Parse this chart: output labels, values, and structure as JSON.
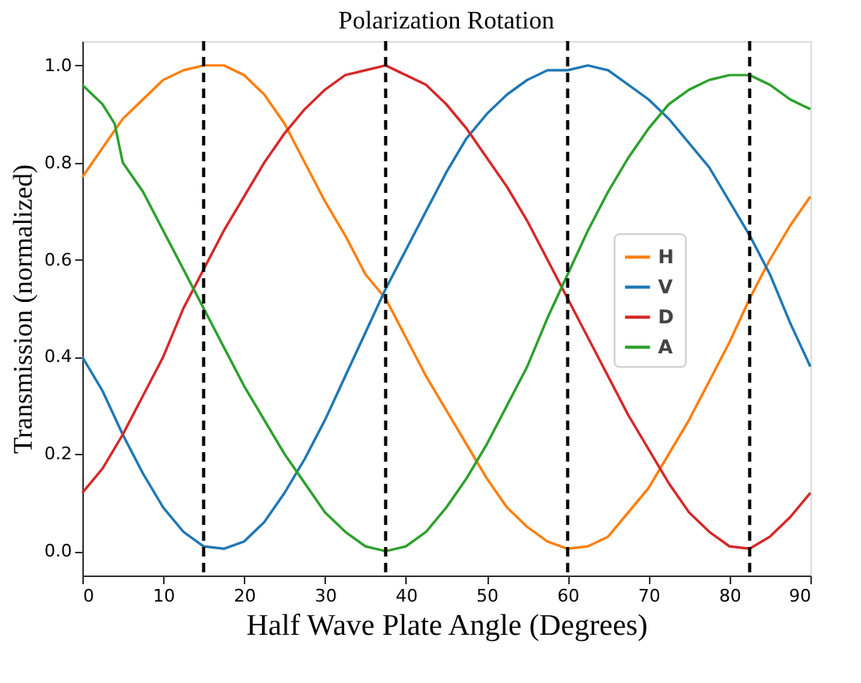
{
  "chart_data": {
    "type": "line",
    "title": "Polarization Rotation",
    "xlabel": "Half Wave Plate Angle (Degrees)",
    "ylabel": "Transmission (normalized)",
    "x": [
      0,
      2.5,
      5,
      7.5,
      10,
      12.5,
      15,
      17.5,
      20,
      22.5,
      25,
      27.5,
      30,
      32.5,
      35,
      37.5,
      40,
      42.5,
      45,
      47.5,
      50,
      52.5,
      55,
      57.5,
      60,
      62.5,
      65,
      67.5,
      70,
      72.5,
      75,
      77.5,
      80,
      82.5,
      85,
      87.5,
      90
    ],
    "series": [
      {
        "name": "H",
        "color": "#ff7f0e",
        "values": [
          0.77,
          0.83,
          0.89,
          0.93,
          0.97,
          0.99,
          1.0,
          1.0,
          0.98,
          0.94,
          0.88,
          0.8,
          0.72,
          0.65,
          0.57,
          0.52,
          0.44,
          0.36,
          0.29,
          0.22,
          0.15,
          0.09,
          0.05,
          0.02,
          0.005,
          0.01,
          0.03,
          0.08,
          0.13,
          0.2,
          0.27,
          0.35,
          0.43,
          0.52,
          0.6,
          0.67,
          0.73
        ]
      },
      {
        "name": "V",
        "color": "#1f77b4",
        "values": [
          0.4,
          0.33,
          0.24,
          0.16,
          0.09,
          0.04,
          0.01,
          0.005,
          0.02,
          0.06,
          0.12,
          0.19,
          0.27,
          0.36,
          0.45,
          0.54,
          0.62,
          0.7,
          0.78,
          0.85,
          0.9,
          0.94,
          0.97,
          0.99,
          0.99,
          1.0,
          0.99,
          0.96,
          0.93,
          0.89,
          0.84,
          0.79,
          0.72,
          0.65,
          0.57,
          0.47,
          0.38
        ]
      },
      {
        "name": "D",
        "color": "#d62728",
        "values": [
          0.12,
          0.17,
          0.24,
          0.32,
          0.4,
          0.5,
          0.58,
          0.66,
          0.73,
          0.8,
          0.86,
          0.91,
          0.95,
          0.98,
          0.99,
          1.0,
          0.98,
          0.96,
          0.92,
          0.87,
          0.81,
          0.75,
          0.68,
          0.6,
          0.52,
          0.44,
          0.36,
          0.28,
          0.21,
          0.14,
          0.08,
          0.04,
          0.01,
          0.005,
          0.03,
          0.07,
          0.12
        ]
      },
      {
        "name": "A",
        "color": "#2ca02c",
        "x": [
          0,
          2.5,
          4,
          5,
          7.5,
          10,
          12.5,
          15,
          17.5,
          20,
          22.5,
          25,
          27.5,
          30,
          32.5,
          35,
          37.5,
          40,
          42.5,
          45,
          47.5,
          50,
          52.5,
          55,
          57.5,
          60,
          62.5,
          65,
          67.5,
          70,
          72.5,
          75,
          77.5,
          80,
          82.5,
          85,
          87.5,
          90
        ],
        "values": [
          0.96,
          0.92,
          0.88,
          0.8,
          0.74,
          0.66,
          0.58,
          0.5,
          0.42,
          0.34,
          0.27,
          0.2,
          0.14,
          0.08,
          0.04,
          0.01,
          0.0,
          0.01,
          0.04,
          0.09,
          0.15,
          0.22,
          0.3,
          0.38,
          0.48,
          0.57,
          0.66,
          0.74,
          0.81,
          0.87,
          0.92,
          0.95,
          0.97,
          0.98,
          0.98,
          0.96,
          0.93,
          0.91
        ]
      }
    ],
    "xlim": [
      0,
      90
    ],
    "xticks": [
      0,
      10,
      20,
      30,
      40,
      50,
      60,
      70,
      80,
      90
    ],
    "ylim": [
      -0.05,
      1.05
    ],
    "yticks": [
      {
        "value": 0,
        "label": "0.0"
      },
      {
        "value": 0.2,
        "label": "0.2"
      },
      {
        "value": 0.4,
        "label": "0.4"
      },
      {
        "value": 0.6,
        "label": "0.6"
      },
      {
        "value": 0.8,
        "label": "0.8"
      },
      {
        "value": 1,
        "label": "1.0"
      }
    ],
    "ref_lines": [
      {
        "axis": "x",
        "value": 15,
        "color": "#000000",
        "line_style": "dashed"
      },
      {
        "axis": "x",
        "value": 37.5,
        "color": "#000000",
        "line_style": "dashed"
      },
      {
        "axis": "x",
        "value": 60,
        "color": "#000000",
        "line_style": "dashed"
      },
      {
        "axis": "x",
        "value": 82.5,
        "color": "#000000",
        "line_style": "dashed"
      }
    ],
    "grid": false,
    "legend": "right",
    "marker": "none",
    "line_style": "solid"
  }
}
